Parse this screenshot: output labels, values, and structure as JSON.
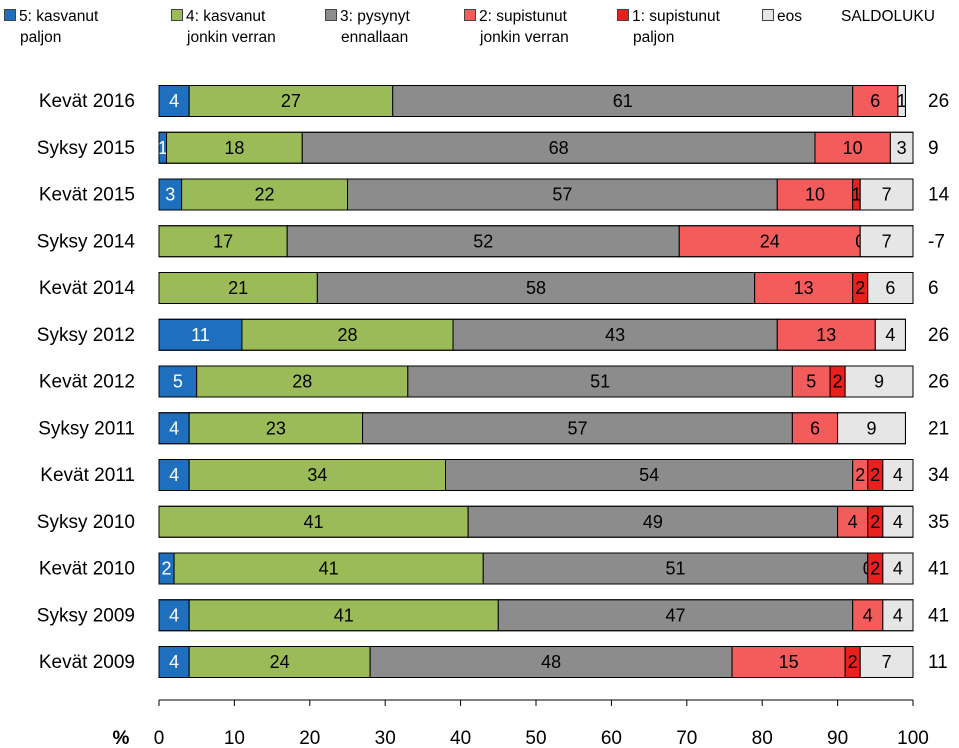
{
  "chart_data": {
    "type": "bar",
    "orientation": "horizontal",
    "stacked": true,
    "categories": [
      "Kevät 2016",
      "Syksy 2015",
      "Kevät 2015",
      "Syksy 2014",
      "Kevät 2014",
      "Syksy 2012",
      "Kevät 2012",
      "Syksy 2011",
      "Kevät 2011",
      "Syksy 2010",
      "Kevät 2010",
      "Syksy 2009",
      "Kevät 2009"
    ],
    "series": [
      {
        "name": "5: kasvanut paljon",
        "name_lines": [
          "5: kasvanut",
          "paljon"
        ],
        "color": "#1f6fbf",
        "values": [
          4,
          1,
          3,
          0,
          0,
          11,
          5,
          4,
          4,
          0,
          2,
          4,
          4
        ]
      },
      {
        "name": "4: kasvanut jonkin verran",
        "name_lines": [
          "4: kasvanut",
          "jonkin verran"
        ],
        "color": "#9bbb59",
        "values": [
          27,
          18,
          22,
          17,
          21,
          28,
          28,
          23,
          34,
          41,
          41,
          41,
          24
        ]
      },
      {
        "name": "3: pysynyt ennallaan",
        "name_lines": [
          "3: pysynyt",
          "ennallaan"
        ],
        "color": "#8c8c8c",
        "values": [
          61,
          68,
          57,
          52,
          58,
          43,
          51,
          57,
          54,
          49,
          51,
          47,
          48
        ]
      },
      {
        "name": "2: supistunut jonkin verran",
        "name_lines": [
          "2: supistunut",
          "jonkin verran"
        ],
        "color": "#f45b5b",
        "values": [
          6,
          10,
          10,
          24,
          13,
          13,
          5,
          6,
          2,
          4,
          0,
          4,
          15
        ]
      },
      {
        "name": "1: supistunut paljon",
        "name_lines": [
          "1: supistunut",
          "paljon"
        ],
        "color": "#e8211c",
        "values": [
          0,
          0,
          1,
          0,
          2,
          0,
          2,
          0,
          2,
          2,
          2,
          0,
          2
        ]
      },
      {
        "name": "eos",
        "name_lines": [
          "eos"
        ],
        "color": "#e6e6e6",
        "values": [
          1,
          3,
          7,
          7,
          6,
          4,
          9,
          9,
          4,
          4,
          4,
          4,
          7
        ]
      }
    ],
    "label_hidden": [
      [
        false,
        false,
        false,
        false,
        true,
        false
      ],
      [
        false,
        false,
        false,
        false,
        true,
        false
      ],
      [
        false,
        false,
        false,
        false,
        false,
        false
      ],
      [
        false,
        false,
        false,
        false,
        false,
        false
      ],
      [
        false,
        false,
        false,
        false,
        false,
        false
      ],
      [
        false,
        false,
        false,
        false,
        true,
        false
      ],
      [
        false,
        false,
        false,
        false,
        false,
        false
      ],
      [
        false,
        false,
        false,
        false,
        true,
        false
      ],
      [
        false,
        false,
        false,
        false,
        false,
        false
      ],
      [
        false,
        false,
        false,
        false,
        false,
        false
      ],
      [
        false,
        false,
        false,
        false,
        false,
        false
      ],
      [
        false,
        false,
        false,
        false,
        true,
        false
      ],
      [
        false,
        false,
        false,
        false,
        false,
        false
      ]
    ],
    "saldo_header": "SALDOLUKU",
    "saldo": [
      "26",
      "9",
      "14",
      "-7",
      "6",
      "26",
      "26",
      "21",
      "34",
      "35",
      "41",
      "41",
      "11"
    ],
    "xlabel": "%",
    "xlim": [
      0,
      100
    ],
    "xticks": [
      0,
      10,
      20,
      30,
      40,
      50,
      60,
      70,
      80,
      90,
      100
    ],
    "grid": false,
    "legend_position": "top"
  }
}
